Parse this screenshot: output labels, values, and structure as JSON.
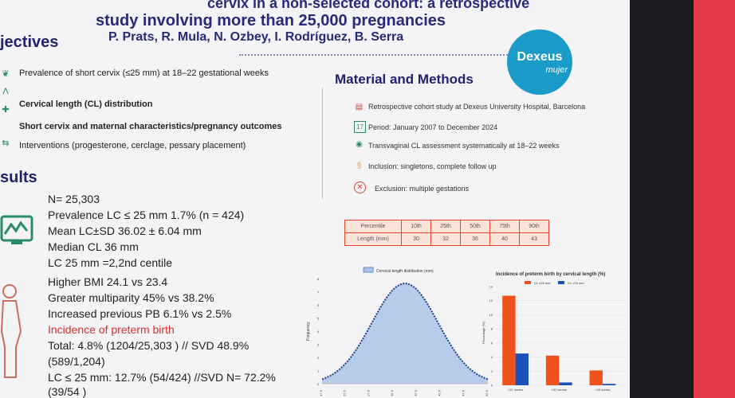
{
  "header": {
    "title_line1": "cervix in a non-selected cohort: a retrospective",
    "title_line2": "study involving more than 25,000 pregnancies",
    "authors": "P. Prats, R. Mula, N. Ozbey, I. Rodríguez, B. Serra"
  },
  "logo": {
    "brand": "Dexeus",
    "sub": "mujer"
  },
  "objectives": {
    "heading": "jectives",
    "items": [
      {
        "text": "Prevalence of short cervix (≤25 mm) at 18–22 gestational weeks"
      },
      {
        "text": "Cervical length (CL) distribution"
      },
      {
        "text": "Short cervix and maternal characteristics/pregnancy outcomes"
      },
      {
        "text": "Interventions (progesterone, cerclage, pessary placement)"
      }
    ]
  },
  "results": {
    "heading": "sults",
    "lines": [
      "N= 25,303",
      "Prevalence LC ≤ 25 mm 1.7% (n = 424)",
      "Mean LC±SD 36.02 ± 6.04 mm",
      "Median CL 36 mm",
      "LC 25 mm =2,2nd centile",
      "Higher BMI 24.1 vs 23.4",
      "Greater multiparity 45% vs 38.2%",
      "Increased previous PB 6.1% vs 2.5%",
      "Incidence of preterm birth",
      "Total: 4.8% (1204/25,303 ) // SVD 48.9%",
      "(589/1,204)",
      "LC ≤ 25 mm: 12.7% (54/424) //SVD N= 72.2%",
      "(39/54 )"
    ]
  },
  "methods": {
    "heading": "Material and Methods",
    "items": [
      "Retrospective cohort study at Dexeus University Hospital, Barcelona",
      "Period: January 2007 to December 2024",
      "Transvaginal CL assessment systematically at 18–22 weeks",
      "Inclusion: singletons, complete follow up",
      "Exclusion: multiple gestations"
    ]
  },
  "percentile_table": {
    "header": [
      "Percentile",
      "10th",
      "25th",
      "50th",
      "75th",
      "90th"
    ],
    "row": [
      "Length (mm)",
      "30",
      "32",
      "36",
      "40",
      "43"
    ]
  },
  "dist_chart": {
    "legend": "Cervical length distribution (mm)",
    "ylabel": "Frequency",
    "yticks": [
      "8",
      "7",
      "6",
      "5",
      "4",
      "3",
      "2",
      "1",
      "0"
    ],
    "xticks": [
      "17.5",
      "22.6",
      "27.6",
      "32.6",
      "37.6",
      "42.6",
      "47.6",
      "52.6"
    ]
  },
  "bar_chart": {
    "title": "Incidence of preterm birth by cervical length (%)",
    "legend": [
      "CL ≤25 mm",
      "CL >25 mm"
    ],
    "ylabel": "Percentage (%)",
    "yticks": [
      "14",
      "12",
      "10",
      "8",
      "6",
      "4",
      "2",
      "0"
    ],
    "categories": [
      "<37 weeks",
      "<32 weeks",
      "<28 weeks"
    ],
    "series_a": [
      12.7,
      4.2,
      2.1
    ],
    "series_b": [
      4.5,
      0.4,
      0.2
    ],
    "color_a": "#f0521b",
    "color_b": "#1a50b8"
  }
}
